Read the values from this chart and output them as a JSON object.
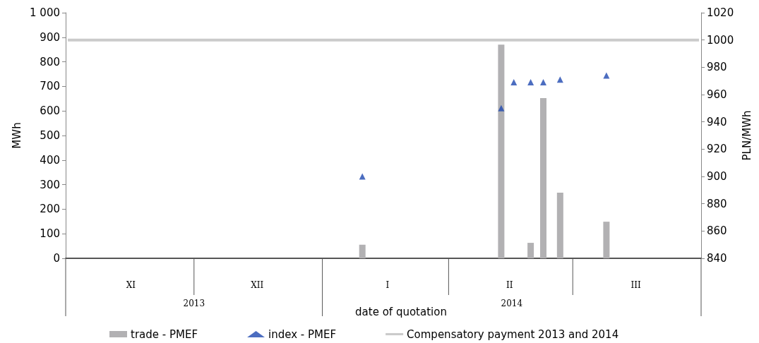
{
  "chart_data": {
    "type": "bar",
    "xlabel": "date of quotation",
    "ylabel": "MWh",
    "y2label": "PLN/MWh",
    "categories": [
      null,
      null,
      null,
      null,
      null,
      null,
      null,
      null,
      null,
      null,
      null,
      null,
      null,
      null,
      null,
      "XI",
      null,
      null,
      null,
      null,
      null,
      null,
      null,
      null,
      null,
      null,
      null,
      null,
      null,
      null,
      null,
      null,
      null,
      null,
      null,
      null,
      null,
      null,
      null,
      null,
      null,
      null,
      null,
      null,
      null,
      "XII",
      null,
      null,
      null,
      null,
      null,
      null,
      null,
      null,
      null,
      null,
      null,
      null,
      null,
      null,
      null,
      null,
      null,
      null,
      null,
      null,
      null,
      null,
      null,
      null,
      null,
      null,
      null,
      null,
      null,
      null,
      "I",
      null,
      null,
      null,
      null,
      null,
      null,
      null,
      null,
      null,
      null,
      null,
      null,
      null,
      null,
      null,
      null,
      null,
      null,
      null,
      null,
      null,
      null,
      null,
      null,
      null,
      null,
      null,
      null,
      "II",
      null,
      null,
      null,
      null,
      null,
      null,
      null,
      null,
      null,
      null,
      null,
      null,
      null,
      null,
      null,
      null,
      null,
      null,
      null,
      null,
      null,
      null,
      null,
      null,
      null,
      null,
      null,
      null,
      null,
      "III",
      null,
      null,
      null,
      null,
      null,
      null,
      null,
      null,
      null,
      null,
      null,
      null,
      null,
      null,
      null
    ],
    "ylim": [
      0,
      1000
    ],
    "yticks": [
      0,
      100,
      200,
      300,
      400,
      500,
      600,
      700,
      800,
      900,
      {
        "value": 1000,
        "label": "1 000"
      }
    ],
    "y2lim": [
      840,
      1020
    ],
    "y2ticks": [
      840,
      860,
      880,
      900,
      920,
      940,
      960,
      980,
      1000,
      1020
    ],
    "series": [
      {
        "name": "trade - PMEF",
        "color": "#b2b1b3",
        "values": [
          null,
          null,
          null,
          null,
          null,
          null,
          null,
          null,
          null,
          null,
          null,
          null,
          null,
          null,
          null,
          null,
          null,
          null,
          null,
          null,
          null,
          null,
          null,
          null,
          null,
          null,
          null,
          null,
          null,
          null,
          null,
          null,
          null,
          null,
          null,
          null,
          null,
          null,
          null,
          null,
          null,
          null,
          null,
          null,
          null,
          null,
          null,
          null,
          null,
          null,
          null,
          null,
          null,
          null,
          null,
          null,
          null,
          null,
          null,
          null,
          null,
          null,
          null,
          null,
          null,
          null,
          null,
          null,
          null,
          null,
          55,
          null,
          null,
          null,
          null,
          null,
          null,
          null,
          null,
          null,
          null,
          null,
          null,
          null,
          null,
          null,
          null,
          null,
          null,
          null,
          null,
          null,
          null,
          null,
          null,
          null,
          null,
          null,
          null,
          null,
          null,
          null,
          null,
          870,
          null,
          null,
          null,
          null,
          null,
          null,
          63,
          null,
          null,
          652,
          null,
          null,
          null,
          267,
          null,
          null,
          null,
          null,
          null,
          null,
          null,
          null,
          null,
          null,
          149,
          null,
          null,
          null,
          null,
          null,
          null,
          null,
          null,
          null,
          null,
          null,
          null,
          null,
          null,
          null,
          null,
          null,
          null,
          null,
          null,
          null,
          null
        ]
      },
      {
        "name": "index - PMEF",
        "type": "scatter",
        "axis": "y2",
        "marker": "triangle",
        "color": "#1f48b0",
        "values": [
          null,
          null,
          null,
          null,
          null,
          null,
          null,
          null,
          null,
          null,
          null,
          null,
          null,
          null,
          null,
          null,
          null,
          null,
          null,
          null,
          null,
          null,
          null,
          null,
          null,
          null,
          null,
          null,
          null,
          null,
          null,
          null,
          null,
          null,
          null,
          null,
          null,
          null,
          null,
          null,
          null,
          null,
          null,
          null,
          null,
          null,
          null,
          null,
          null,
          null,
          null,
          null,
          null,
          null,
          null,
          null,
          null,
          null,
          null,
          null,
          null,
          null,
          null,
          null,
          null,
          null,
          null,
          null,
          null,
          null,
          900,
          null,
          null,
          null,
          null,
          null,
          null,
          null,
          null,
          null,
          null,
          null,
          null,
          null,
          null,
          null,
          null,
          null,
          null,
          null,
          null,
          null,
          null,
          null,
          null,
          null,
          null,
          null,
          null,
          null,
          null,
          null,
          null,
          950,
          null,
          null,
          969,
          null,
          null,
          null,
          969,
          null,
          null,
          969,
          null,
          null,
          null,
          971,
          null,
          null,
          null,
          null,
          null,
          null,
          null,
          null,
          null,
          null,
          974,
          null,
          null,
          null,
          null,
          null,
          null,
          null,
          null,
          null,
          null,
          null,
          null,
          null,
          null,
          null,
          null,
          null,
          null,
          null,
          null,
          null,
          null
        ]
      },
      {
        "name": "Compensatory payment 2013 and 2014",
        "type": "line",
        "axis": "y2",
        "marker": "none",
        "color": "#cbcbcb",
        "values": [
          1000,
          1000,
          1000,
          1000,
          1000,
          1000,
          1000,
          1000,
          1000,
          1000,
          1000,
          1000,
          1000,
          1000,
          1000,
          1000,
          1000,
          1000,
          1000,
          1000,
          1000,
          1000,
          1000,
          1000,
          1000,
          1000,
          1000,
          1000,
          1000,
          1000,
          1000,
          1000,
          1000,
          1000,
          1000,
          1000,
          1000,
          1000,
          1000,
          1000,
          1000,
          1000,
          1000,
          1000,
          1000,
          1000,
          1000,
          1000,
          1000,
          1000,
          1000,
          1000,
          1000,
          1000,
          1000,
          1000,
          1000,
          1000,
          1000,
          1000,
          1000,
          1000,
          1000,
          1000,
          1000,
          1000,
          1000,
          1000,
          1000,
          1000,
          1000,
          1000,
          1000,
          1000,
          1000,
          1000,
          1000,
          1000,
          1000,
          1000,
          1000,
          1000,
          1000,
          1000,
          1000,
          1000,
          1000,
          1000,
          1000,
          1000,
          1000,
          1000,
          1000,
          1000,
          1000,
          1000,
          1000,
          1000,
          1000,
          1000,
          1000,
          1000,
          1000,
          1000,
          1000,
          1000,
          1000,
          1000,
          1000,
          1000,
          1000,
          1000,
          1000,
          1000,
          1000,
          1000,
          1000,
          1000,
          1000,
          1000,
          1000,
          1000,
          1000,
          1000,
          1000,
          1000,
          1000,
          1000,
          1000,
          1000,
          1000,
          1000,
          1000,
          1000,
          1000,
          1000,
          1000,
          1000,
          1000,
          1000,
          1000,
          1000,
          1000,
          1000,
          1000,
          1000,
          1000,
          1000,
          1000,
          1000,
          1000
        ]
      }
    ],
    "annotations": [
      "2013",
      "2014"
    ],
    "grid": false,
    "legend": "bottom"
  }
}
